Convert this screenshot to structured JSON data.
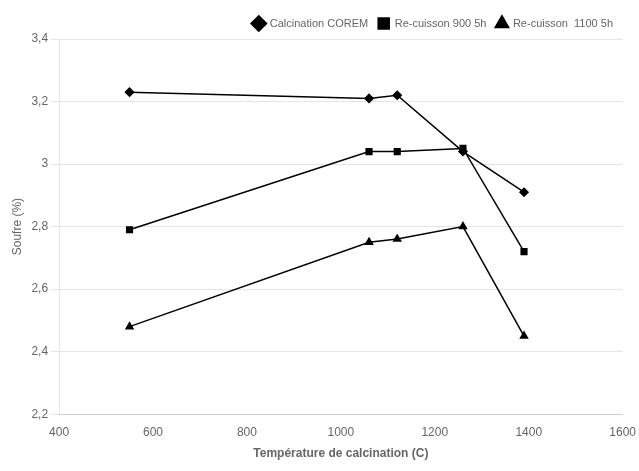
{
  "chart_data": {
    "type": "line",
    "x_label": "Température de calcination (C)",
    "y_label": "Soufre (%)",
    "x": [
      550,
      1060,
      1120,
      1260,
      1390
    ],
    "series": [
      {
        "name": "Calcination COREM",
        "color": "black",
        "marker": "diamond",
        "line_style": "solid",
        "values": [
          3.23,
          3.21,
          3.22,
          3.04,
          2.91
        ]
      },
      {
        "name": "Re-cuisson 900 5h",
        "color": "black",
        "marker": "square",
        "line_style": "solid",
        "values": [
          2.79,
          3.04,
          3.04,
          3.05,
          2.72
        ]
      },
      {
        "name": "Re-cuisson  1100 5h",
        "color": "black",
        "marker": "triangle",
        "line_style": "solid",
        "values": [
          2.48,
          2.75,
          2.76,
          2.8,
          2.45
        ]
      }
    ],
    "xlim": [
      400,
      1600
    ],
    "ylim": [
      2.2,
      3.4
    ],
    "xticks": [
      400,
      600,
      800,
      1000,
      1200,
      1400,
      1600
    ],
    "yticks": [
      {
        "value": 2.2,
        "label": "2,2"
      },
      {
        "value": 2.4,
        "label": "2,4"
      },
      {
        "value": 2.6,
        "label": "2,6"
      },
      {
        "value": 2.8,
        "label": "2,8"
      },
      3,
      {
        "value": 3.2,
        "label": "3,2"
      },
      {
        "value": 3.4,
        "label": "3,4"
      }
    ],
    "grid": "y",
    "legend": "upper right"
  }
}
